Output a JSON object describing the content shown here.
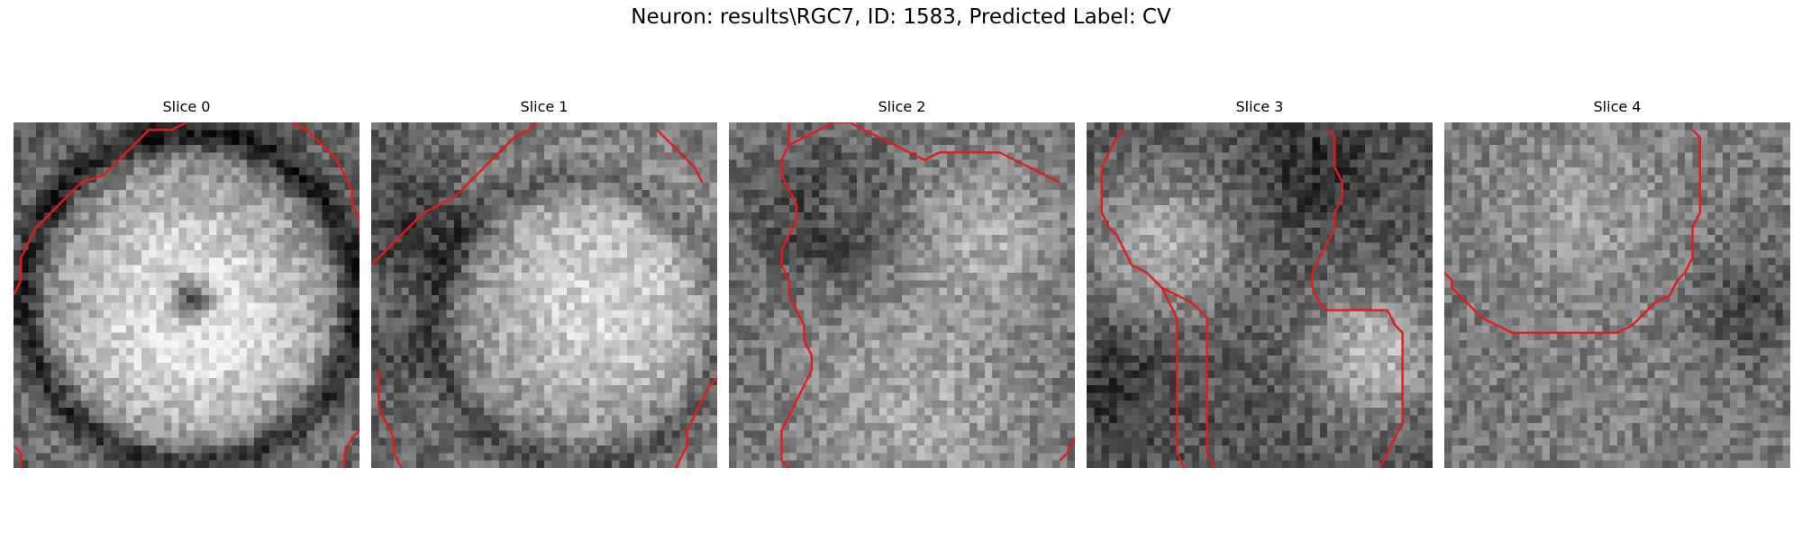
{
  "figure": {
    "title": "Neuron: results\\RGC7, ID: 1583, Predicted Label: CV",
    "contour_color": "#e41a1c"
  },
  "panels": [
    {
      "title": "Slice 0",
      "contours": [
        [
          [
            23,
            0
          ],
          [
            21,
            1
          ],
          [
            18,
            1
          ],
          [
            16,
            3
          ],
          [
            14,
            5
          ],
          [
            12,
            7
          ],
          [
            9,
            8
          ],
          [
            7,
            10
          ],
          [
            5,
            12
          ],
          [
            3,
            14
          ],
          [
            2,
            16
          ],
          [
            1,
            18
          ],
          [
            1,
            21
          ],
          [
            0,
            23
          ]
        ],
        [
          [
            37,
            0
          ],
          [
            39,
            1
          ],
          [
            41,
            3
          ],
          [
            43,
            5
          ],
          [
            44,
            7
          ],
          [
            45,
            9
          ],
          [
            45,
            11
          ],
          [
            46,
            13
          ],
          [
            46,
            15
          ]
        ],
        [
          [
            0,
            43
          ],
          [
            1,
            44
          ],
          [
            1,
            46
          ]
        ],
        [
          [
            46,
            41
          ],
          [
            45,
            42
          ],
          [
            44,
            44
          ],
          [
            44,
            46
          ],
          [
            43,
            48
          ],
          [
            42,
            50
          ],
          [
            41,
            51
          ],
          [
            41,
            53
          ]
        ]
      ]
    },
    {
      "title": "Slice 1",
      "contours": [
        [
          [
            22,
            0
          ],
          [
            21,
            1
          ],
          [
            19,
            2
          ],
          [
            17,
            4
          ],
          [
            15,
            6
          ],
          [
            13,
            8
          ],
          [
            11,
            10
          ],
          [
            9,
            11
          ],
          [
            7,
            12
          ],
          [
            5,
            14
          ],
          [
            3,
            16
          ],
          [
            1,
            18
          ],
          [
            0,
            19
          ]
        ],
        [
          [
            38,
            1
          ],
          [
            39,
            2
          ],
          [
            41,
            4
          ],
          [
            43,
            6
          ],
          [
            44,
            8
          ]
        ],
        [
          [
            1,
            33
          ],
          [
            1,
            38
          ],
          [
            2,
            40
          ],
          [
            3,
            42
          ],
          [
            3,
            44
          ],
          [
            4,
            46
          ]
        ],
        [
          [
            46,
            34
          ],
          [
            45,
            35
          ],
          [
            44,
            37
          ],
          [
            43,
            39
          ],
          [
            42,
            41
          ],
          [
            42,
            43
          ],
          [
            41,
            45
          ],
          [
            40,
            47
          ]
        ]
      ]
    },
    {
      "title": "Slice 2",
      "contours": [
        [
          [
            8,
            0
          ],
          [
            8,
            3
          ],
          [
            7,
            5
          ],
          [
            7,
            7
          ],
          [
            8,
            9
          ],
          [
            9,
            11
          ],
          [
            9,
            13
          ],
          [
            8,
            15
          ],
          [
            7,
            17
          ],
          [
            7,
            19
          ],
          [
            8,
            21
          ],
          [
            8,
            23
          ],
          [
            9,
            25
          ],
          [
            10,
            27
          ],
          [
            10,
            29
          ],
          [
            11,
            31
          ],
          [
            11,
            33
          ],
          [
            10,
            35
          ],
          [
            9,
            37
          ],
          [
            8,
            39
          ],
          [
            7,
            41
          ],
          [
            7,
            43
          ],
          [
            7,
            45
          ],
          [
            8,
            46
          ]
        ],
        [
          [
            8,
            3
          ],
          [
            10,
            2
          ],
          [
            12,
            1
          ],
          [
            14,
            0
          ],
          [
            16,
            0
          ],
          [
            18,
            1
          ],
          [
            20,
            2
          ],
          [
            22,
            3
          ],
          [
            24,
            4
          ],
          [
            26,
            5
          ],
          [
            28,
            4
          ],
          [
            30,
            4
          ],
          [
            32,
            4
          ],
          [
            34,
            4
          ],
          [
            36,
            4
          ],
          [
            38,
            5
          ],
          [
            40,
            6
          ],
          [
            42,
            7
          ],
          [
            44,
            8
          ]
        ],
        [
          [
            46,
            42
          ],
          [
            45,
            44
          ],
          [
            44,
            45
          ]
        ]
      ]
    },
    {
      "title": "Slice 3",
      "contours": [
        [
          [
            5,
            1
          ],
          [
            4,
            2
          ],
          [
            3,
            4
          ],
          [
            2,
            6
          ],
          [
            2,
            8
          ],
          [
            2,
            10
          ],
          [
            2,
            12
          ],
          [
            3,
            14
          ],
          [
            4,
            15
          ],
          [
            5,
            17
          ],
          [
            6,
            19
          ],
          [
            8,
            20
          ],
          [
            10,
            22
          ],
          [
            11,
            24
          ],
          [
            12,
            26
          ],
          [
            12,
            28
          ],
          [
            12,
            30
          ],
          [
            12,
            32
          ],
          [
            12,
            34
          ],
          [
            12,
            36
          ],
          [
            12,
            38
          ],
          [
            12,
            40
          ],
          [
            12,
            42
          ],
          [
            12,
            44
          ],
          [
            13,
            46
          ]
        ],
        [
          [
            10,
            22
          ],
          [
            12,
            23
          ],
          [
            14,
            24
          ],
          [
            15,
            25
          ],
          [
            16,
            26
          ],
          [
            16,
            28
          ],
          [
            16,
            30
          ],
          [
            16,
            32
          ],
          [
            16,
            34
          ],
          [
            16,
            36
          ],
          [
            16,
            38
          ],
          [
            16,
            40
          ],
          [
            16,
            42
          ],
          [
            16,
            44
          ],
          [
            17,
            46
          ]
        ],
        [
          [
            32,
            1
          ],
          [
            33,
            2
          ],
          [
            33,
            4
          ],
          [
            33,
            6
          ],
          [
            34,
            8
          ],
          [
            34,
            10
          ],
          [
            33,
            12
          ],
          [
            33,
            14
          ],
          [
            32,
            16
          ],
          [
            31,
            18
          ],
          [
            30,
            20
          ],
          [
            30,
            22
          ],
          [
            31,
            24
          ],
          [
            32,
            25
          ],
          [
            34,
            25
          ],
          [
            36,
            25
          ],
          [
            38,
            25
          ],
          [
            40,
            25
          ],
          [
            41,
            27
          ],
          [
            42,
            28
          ],
          [
            42,
            30
          ],
          [
            42,
            32
          ],
          [
            42,
            34
          ],
          [
            42,
            36
          ],
          [
            42,
            38
          ],
          [
            42,
            40
          ],
          [
            41,
            42
          ],
          [
            40,
            44
          ],
          [
            39,
            46
          ]
        ]
      ]
    },
    {
      "title": "Slice 4",
      "contours": [
        [
          [
            33,
            1
          ],
          [
            34,
            2
          ],
          [
            34,
            4
          ],
          [
            34,
            6
          ],
          [
            34,
            8
          ],
          [
            34,
            10
          ],
          [
            34,
            12
          ],
          [
            33,
            14
          ],
          [
            33,
            16
          ],
          [
            33,
            18
          ],
          [
            32,
            20
          ],
          [
            31,
            21
          ],
          [
            30,
            23
          ],
          [
            28,
            24
          ],
          [
            27,
            25
          ],
          [
            26,
            26
          ],
          [
            25,
            27
          ],
          [
            23,
            28
          ],
          [
            21,
            28
          ],
          [
            19,
            28
          ],
          [
            17,
            28
          ],
          [
            15,
            28
          ],
          [
            13,
            28
          ],
          [
            11,
            28
          ],
          [
            9,
            28
          ],
          [
            7,
            27
          ],
          [
            5,
            26
          ],
          [
            4,
            25
          ],
          [
            3,
            24
          ],
          [
            2,
            23
          ],
          [
            1,
            22
          ],
          [
            1,
            21
          ],
          [
            0,
            20
          ]
        ]
      ]
    }
  ]
}
